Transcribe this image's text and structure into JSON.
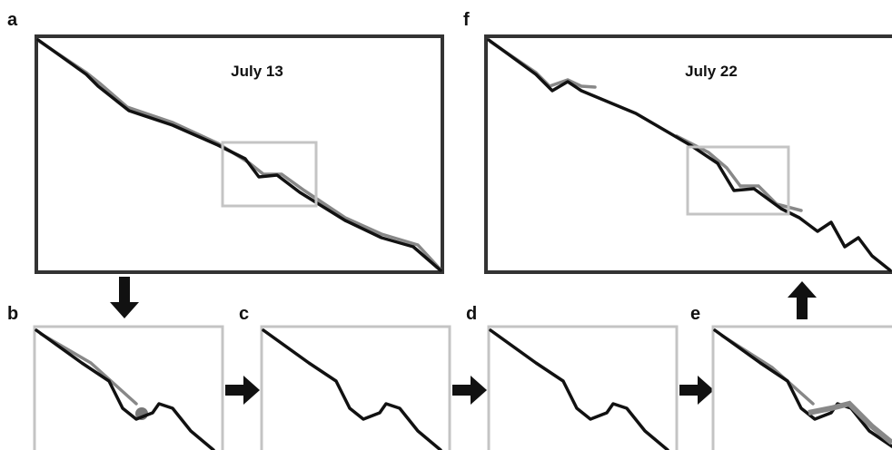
{
  "panels": [
    {
      "label": "a",
      "title": "July 13"
    },
    {
      "label": "b"
    },
    {
      "label": "c"
    },
    {
      "label": "d"
    },
    {
      "label": "e"
    },
    {
      "label": "f",
      "title": "July 22"
    }
  ]
}
